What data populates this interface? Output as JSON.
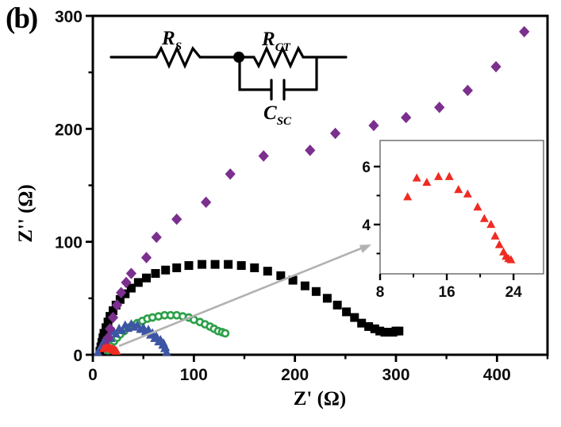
{
  "panel_label": "(b)",
  "colors": {
    "purple": "#7b2f8e",
    "black": "#000000",
    "green": "#2ea04a",
    "blue": "#3c55a5",
    "red": "#ee2c23",
    "arrow_gray": "#b2b2b2",
    "inset_border": "#7a7a7a"
  },
  "chart_data": {
    "type": "scatter",
    "title": "",
    "xlabel": "Z' (Ω)",
    "ylabel": "Z'' (Ω)",
    "xlim": [
      0,
      450
    ],
    "ylim": [
      0,
      300
    ],
    "xticks_major": [
      0,
      100,
      200,
      300,
      400
    ],
    "xticks_minor": [
      50,
      150,
      250,
      350,
      450
    ],
    "yticks_major": [
      0,
      100,
      200,
      300
    ],
    "yticks_minor": [
      50,
      150,
      250
    ],
    "grid": false,
    "legend": "none",
    "series": [
      {
        "name": "black-squares",
        "marker": "square",
        "color": "#000000",
        "points": [
          [
            7,
            3
          ],
          [
            8,
            7
          ],
          [
            9,
            11
          ],
          [
            10,
            15
          ],
          [
            11,
            19
          ],
          [
            13,
            24
          ],
          [
            15,
            29
          ],
          [
            17,
            34
          ],
          [
            20,
            39
          ],
          [
            23,
            44
          ],
          [
            27,
            49
          ],
          [
            32,
            54
          ],
          [
            38,
            59
          ],
          [
            45,
            64
          ],
          [
            53,
            68
          ],
          [
            62,
            72
          ],
          [
            72,
            75
          ],
          [
            83,
            77
          ],
          [
            95,
            79
          ],
          [
            108,
            80
          ],
          [
            121,
            80
          ],
          [
            134,
            80
          ],
          [
            147,
            79
          ],
          [
            160,
            77
          ],
          [
            173,
            74
          ],
          [
            186,
            70
          ],
          [
            198,
            66
          ],
          [
            210,
            61
          ],
          [
            221,
            56
          ],
          [
            232,
            50
          ],
          [
            242,
            44
          ],
          [
            251,
            38
          ],
          [
            259,
            33
          ],
          [
            266,
            28
          ],
          [
            273,
            25
          ],
          [
            279,
            23
          ],
          [
            284,
            21
          ],
          [
            289,
            20
          ],
          [
            293,
            20
          ],
          [
            297,
            20
          ],
          [
            300,
            21
          ],
          [
            303,
            21
          ]
        ]
      },
      {
        "name": "green-open-circles",
        "marker": "circle-open",
        "color": "#2ea04a",
        "points": [
          [
            15,
            4
          ],
          [
            18,
            8
          ],
          [
            21,
            12
          ],
          [
            24,
            15
          ],
          [
            27,
            18
          ],
          [
            31,
            21
          ],
          [
            35,
            24
          ],
          [
            39,
            26
          ],
          [
            44,
            28
          ],
          [
            49,
            30
          ],
          [
            54,
            32
          ],
          [
            59,
            33
          ],
          [
            65,
            34
          ],
          [
            71,
            35
          ],
          [
            77,
            35
          ],
          [
            83,
            35
          ],
          [
            89,
            34
          ],
          [
            95,
            33
          ],
          [
            100,
            31
          ],
          [
            106,
            29
          ],
          [
            111,
            27
          ],
          [
            116,
            25
          ],
          [
            120,
            23
          ],
          [
            124,
            21
          ],
          [
            128,
            20
          ],
          [
            131,
            19
          ]
        ]
      },
      {
        "name": "blue-triangles",
        "marker": "triangle",
        "color": "#3c55a5",
        "points": [
          [
            5,
            2
          ],
          [
            8,
            7
          ],
          [
            11,
            12
          ],
          [
            13,
            10
          ],
          [
            16,
            16
          ],
          [
            18,
            14
          ],
          [
            21,
            20
          ],
          [
            23,
            18
          ],
          [
            26,
            23
          ],
          [
            29,
            21
          ],
          [
            32,
            26
          ],
          [
            35,
            23
          ],
          [
            38,
            27
          ],
          [
            41,
            24
          ],
          [
            44,
            26
          ],
          [
            47,
            22
          ],
          [
            50,
            24
          ],
          [
            52,
            20
          ],
          [
            55,
            22
          ],
          [
            57,
            17
          ],
          [
            59,
            19
          ],
          [
            61,
            14
          ],
          [
            63,
            16
          ],
          [
            65,
            11
          ],
          [
            67,
            13
          ],
          [
            69,
            8
          ],
          [
            70,
            10
          ],
          [
            71,
            5
          ],
          [
            72,
            6
          ],
          [
            73,
            2
          ]
        ]
      },
      {
        "name": "purple-diamonds",
        "marker": "diamond",
        "color": "#7b2f8e",
        "points": [
          [
            13,
            8
          ],
          [
            15,
            15
          ],
          [
            17,
            23
          ],
          [
            20,
            33
          ],
          [
            24,
            44
          ],
          [
            28,
            55
          ],
          [
            33,
            64
          ],
          [
            38,
            72
          ],
          [
            53,
            86
          ],
          [
            63,
            104
          ],
          [
            83,
            120
          ],
          [
            112,
            135
          ],
          [
            136,
            160
          ],
          [
            169,
            176
          ],
          [
            215,
            181
          ],
          [
            240,
            196
          ],
          [
            278,
            203
          ],
          [
            310,
            210
          ],
          [
            343,
            219
          ],
          [
            371,
            234
          ],
          [
            399,
            255
          ],
          [
            427,
            286
          ]
        ]
      },
      {
        "name": "red-triangles",
        "marker": "triangle",
        "color": "#ee2c23",
        "points": [
          [
            10.5,
            5.0
          ],
          [
            12.3,
            5.6
          ],
          [
            13.4,
            5.5
          ],
          [
            14.8,
            5.65
          ],
          [
            16.0,
            5.65
          ],
          [
            17.2,
            5.2
          ],
          [
            18.0,
            5.1
          ],
          [
            19.3,
            4.6
          ],
          [
            20.3,
            4.2
          ],
          [
            20.9,
            4.05
          ],
          [
            21.6,
            3.6
          ],
          [
            22.1,
            3.3
          ],
          [
            22.5,
            3.05
          ],
          [
            22.9,
            2.9
          ],
          [
            23.2,
            2.82
          ],
          [
            23.5,
            2.78
          ]
        ]
      }
    ],
    "inset": {
      "xlim": [
        8,
        27.6
      ],
      "ylim": [
        2.3,
        6.9
      ],
      "xticks_major": [
        8,
        16,
        24
      ],
      "xticks_minor": [
        12,
        20
      ],
      "yticks_major": [
        4,
        6
      ],
      "yticks_minor": [
        3,
        5
      ],
      "series": [
        {
          "name": "red-triangles-zoom",
          "marker": "triangle",
          "color": "#ee2c23",
          "points": [
            [
              11.3,
              4.95
            ],
            [
              12.4,
              5.6
            ],
            [
              13.6,
              5.45
            ],
            [
              15.0,
              5.65
            ],
            [
              16.3,
              5.65
            ],
            [
              17.4,
              5.2
            ],
            [
              18.5,
              5.05
            ],
            [
              19.7,
              4.6
            ],
            [
              20.5,
              4.2
            ],
            [
              21.3,
              4.0
            ],
            [
              21.8,
              3.6
            ],
            [
              22.3,
              3.3
            ],
            [
              22.8,
              3.05
            ],
            [
              23.1,
              2.9
            ],
            [
              23.4,
              2.82
            ],
            [
              23.7,
              2.78
            ]
          ]
        }
      ]
    }
  },
  "circuit": {
    "rs": {
      "base": "R",
      "sub": "S"
    },
    "rct": {
      "base": "R",
      "sub": "CT"
    },
    "csc": {
      "base": "C",
      "sub": "SC"
    }
  }
}
